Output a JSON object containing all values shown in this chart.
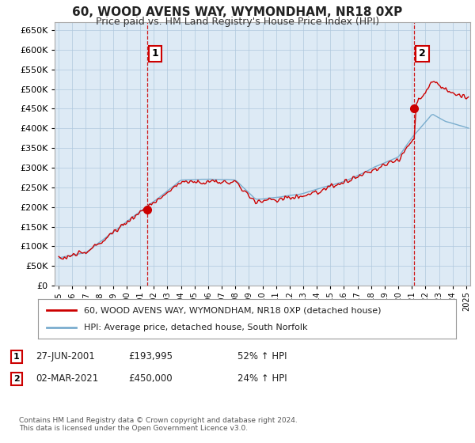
{
  "title": "60, WOOD AVENS WAY, WYMONDHAM, NR18 0XP",
  "subtitle": "Price paid vs. HM Land Registry's House Price Index (HPI)",
  "legend_line1": "60, WOOD AVENS WAY, WYMONDHAM, NR18 0XP (detached house)",
  "legend_line2": "HPI: Average price, detached house, South Norfolk",
  "annotation1_label": "1",
  "annotation1_date": "27-JUN-2001",
  "annotation1_price": "£193,995",
  "annotation1_hpi": "52% ↑ HPI",
  "annotation1_year": 2001.5,
  "annotation1_value": 193995,
  "annotation2_label": "2",
  "annotation2_date": "02-MAR-2021",
  "annotation2_price": "£450,000",
  "annotation2_hpi": "24% ↑ HPI",
  "annotation2_year": 2021.17,
  "annotation2_value": 450000,
  "line1_color": "#cc0000",
  "line2_color": "#7aadce",
  "vline_color": "#cc0000",
  "grid_color": "#b0c8dd",
  "plot_bg_color": "#ddeaf5",
  "background_color": "#ffffff",
  "ylim": [
    0,
    670000
  ],
  "xlim_start": 1994.7,
  "xlim_end": 2025.3,
  "footnote": "Contains HM Land Registry data © Crown copyright and database right 2024.\nThis data is licensed under the Open Government Licence v3.0."
}
